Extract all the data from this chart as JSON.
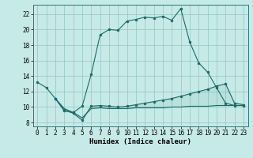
{
  "xlabel": "Humidex (Indice chaleur)",
  "xlim": [
    -0.5,
    23.5
  ],
  "ylim": [
    7.5,
    23.2
  ],
  "xticks": [
    0,
    1,
    2,
    3,
    4,
    5,
    6,
    7,
    8,
    9,
    10,
    11,
    12,
    13,
    14,
    15,
    16,
    17,
    18,
    19,
    20,
    21,
    22,
    23
  ],
  "yticks": [
    8,
    10,
    12,
    14,
    16,
    18,
    20,
    22
  ],
  "background_color": "#c6eae8",
  "grid_color": "#93c4c0",
  "line_color": "#1a6b65",
  "line1_x": [
    0,
    1,
    2,
    3,
    4,
    5,
    6,
    7,
    8,
    9,
    10,
    11,
    12,
    13,
    14,
    15,
    16,
    17,
    18,
    19,
    20,
    21,
    22,
    23
  ],
  "line1_y": [
    13.2,
    12.5,
    11.1,
    9.5,
    9.3,
    10.1,
    14.2,
    19.3,
    20.0,
    19.9,
    21.1,
    21.3,
    21.6,
    21.5,
    21.7,
    21.2,
    22.7,
    18.4,
    15.7,
    14.5,
    12.5,
    10.5,
    10.2,
    10.2
  ],
  "line2_x": [
    2,
    3,
    4,
    5,
    6,
    7,
    8,
    9,
    10,
    11,
    12,
    13,
    14,
    15,
    16,
    17,
    18,
    19,
    20,
    21,
    22,
    23
  ],
  "line2_y": [
    11.1,
    9.6,
    9.2,
    8.3,
    10.1,
    10.2,
    10.1,
    10.0,
    10.1,
    10.3,
    10.5,
    10.7,
    10.9,
    11.1,
    11.4,
    11.7,
    12.0,
    12.3,
    12.7,
    13.0,
    10.5,
    10.3
  ],
  "line3_x": [
    2,
    3,
    4,
    5,
    6,
    7,
    8,
    9,
    10,
    11,
    12,
    13,
    14,
    15,
    16,
    17,
    18,
    19,
    20,
    21,
    22,
    23
  ],
  "line3_y": [
    11.1,
    9.8,
    9.3,
    8.6,
    9.8,
    9.9,
    9.8,
    9.8,
    9.8,
    9.9,
    9.9,
    9.9,
    9.9,
    10.0,
    10.0,
    10.1,
    10.1,
    10.1,
    10.2,
    10.2,
    10.2,
    10.2
  ]
}
